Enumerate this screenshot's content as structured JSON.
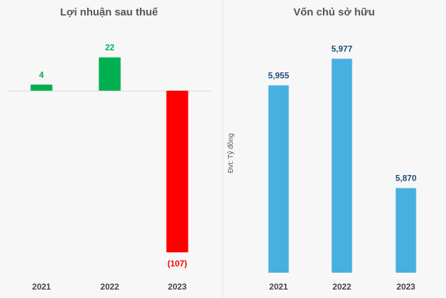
{
  "chart_data": [
    {
      "type": "bar",
      "title": "Lợi nhuận sau thuế",
      "categories": [
        "2021",
        "2022",
        "2023"
      ],
      "values": [
        4,
        22,
        -107
      ],
      "value_labels": [
        "4",
        "22",
        "(107)"
      ],
      "ylabel": "",
      "grid": false,
      "colors": {
        "positive": "#00b050",
        "negative": "#ff0000",
        "baseline": "#d9d9d9"
      }
    },
    {
      "type": "bar",
      "title": "Vốn chủ sở hữu",
      "categories": [
        "2021",
        "2022",
        "2023"
      ],
      "values": [
        5955,
        5977,
        5870
      ],
      "value_labels": [
        "5,955",
        "5,977",
        "5,870"
      ],
      "ylabel": "Đvt: Tỷ đồng",
      "grid": false,
      "colors": {
        "bar": "#47b0e0",
        "label": "#1f4e79"
      }
    }
  ]
}
